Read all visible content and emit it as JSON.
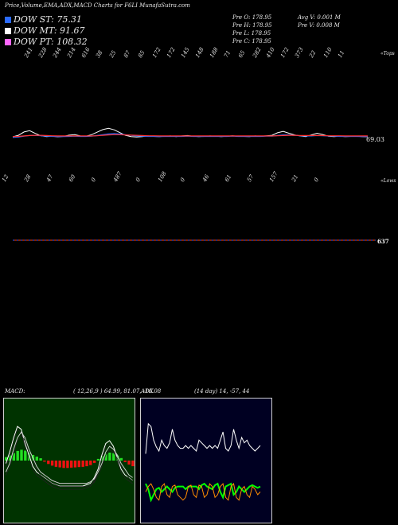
{
  "header": {
    "title": "Price,Volume,EMA,ADX,MACD Charts for F6LI MunafaSutra.com"
  },
  "dow": [
    {
      "label": "DOW ST: 75.31",
      "color": "#2b6bff"
    },
    {
      "label": "DOW MT: 91.67",
      "color": "#ffffff"
    },
    {
      "label": "DOW PT: 108.32",
      "color": "#ff66ff"
    }
  ],
  "prev": {
    "o": "Pre   O: 178.95",
    "h": "Pre   H: 178.95",
    "l": "Pre   L: 178.95",
    "c": "Pre   C: 178.95",
    "avgv": "Avg V: 0.001 M",
    "prev": "Pre   V: 0.008  M"
  },
  "top_labels": [
    "241",
    "228",
    "244",
    "214",
    "616",
    "38",
    "25",
    "87",
    "85",
    "172",
    "172",
    "145",
    "148",
    "188",
    "71",
    "65",
    "282",
    "410",
    "172",
    "373",
    "22",
    "110",
    "11"
  ],
  "low_labels": [
    "12",
    "28",
    "47",
    "60",
    "0",
    "487",
    "0",
    "108",
    "0",
    "46",
    "61",
    "57",
    "157",
    "21",
    "0"
  ],
  "edge_labels": {
    "tops": "«Tops",
    "lows": "«Lows"
  },
  "price_label": "69.03",
  "volume_label": "637",
  "macd": {
    "label": "MACD:",
    "params": "( 12,26,9 ) 64.99, 81.07, -16.08"
  },
  "adx": {
    "label": "ADX",
    "params": "(14  day) 14,  -57,  44"
  },
  "chart_data": [
    {
      "type": "line",
      "name": "price panel",
      "series": [
        {
          "color": "#ffffff",
          "values": [
            60.5,
            61.2,
            62.8,
            63.4,
            62.1,
            61.0,
            60.6,
            60.8,
            60.5,
            60.7,
            61.3,
            61.5,
            60.9,
            60.8,
            61.5,
            62.7,
            63.9,
            64.5,
            63.8,
            62.5,
            61.2,
            60.6,
            60.4,
            60.6,
            60.9,
            60.7,
            60.6,
            60.8,
            60.9,
            60.6,
            60.9,
            61.1,
            60.8,
            60.6,
            60.7,
            60.9,
            60.8,
            60.6,
            60.8,
            61.0,
            60.8,
            60.7,
            60.6,
            60.9,
            60.8,
            61.0,
            61.2,
            62.4,
            63.1,
            62.2,
            61.4,
            60.9,
            60.6,
            61.4,
            62.2,
            61.6,
            60.8,
            60.6,
            60.8,
            60.6,
            60.7,
            60.8,
            60.6,
            60.5
          ]
        },
        {
          "color": "#2b6bff",
          "values": [
            60.2,
            60.4,
            60.8,
            61.1,
            61.2,
            61.0,
            60.8,
            60.7,
            60.6,
            60.6,
            60.7,
            60.8,
            60.7,
            60.7,
            60.8,
            61.1,
            61.5,
            61.9,
            62.0,
            61.8,
            61.5,
            61.2,
            60.9,
            60.8,
            60.7,
            60.7,
            60.6,
            60.7,
            60.7,
            60.7,
            60.7,
            60.8,
            60.7,
            60.7,
            60.7,
            60.7,
            60.7,
            60.7,
            60.7,
            60.8,
            60.7,
            60.7,
            60.7,
            60.7,
            60.7,
            60.8,
            60.8,
            61.1,
            61.4,
            61.4,
            61.2,
            61.0,
            60.9,
            60.9,
            61.1,
            61.0,
            60.9,
            60.8,
            60.7,
            60.7,
            60.7,
            60.7,
            60.6,
            60.6
          ]
        },
        {
          "color": "#ff3333",
          "values": [
            60.6,
            60.7,
            60.9,
            61.1,
            61.2,
            61.2,
            61.1,
            61.0,
            60.9,
            60.9,
            60.9,
            60.9,
            60.9,
            60.9,
            60.9,
            61.0,
            61.2,
            61.4,
            61.5,
            61.5,
            61.4,
            61.3,
            61.2,
            61.1,
            61.0,
            61.0,
            60.9,
            60.9,
            60.9,
            60.9,
            60.9,
            60.9,
            60.9,
            60.9,
            60.9,
            60.9,
            60.9,
            60.9,
            60.9,
            60.9,
            60.9,
            60.9,
            60.9,
            60.9,
            60.9,
            60.9,
            60.9,
            61.0,
            61.1,
            61.2,
            61.2,
            61.1,
            61.1,
            61.1,
            61.1,
            61.1,
            61.0,
            61.0,
            61.0,
            60.9,
            60.9,
            60.9,
            60.9,
            60.9
          ]
        }
      ],
      "ylim": [
        50,
        80
      ]
    },
    {
      "type": "bar",
      "name": "macd histogram",
      "values": [
        1.2,
        1.8,
        2.6,
        3.4,
        3.8,
        3.5,
        2.8,
        2.0,
        1.4,
        0.8,
        -0.4,
        -1.2,
        -1.8,
        -2.2,
        -2.4,
        -2.6,
        -2.6,
        -2.5,
        -2.4,
        -2.3,
        -2.2,
        -2.0,
        -1.6,
        -0.8,
        0.6,
        1.6,
        2.4,
        2.8,
        2.6,
        1.8,
        0.9,
        -0.5,
        -1.4,
        -2.0
      ],
      "macd_line": [
        -1,
        3,
        8,
        12,
        11,
        6,
        2,
        -2,
        -4,
        -5,
        -6,
        -7,
        -8,
        -8.5,
        -9,
        -9,
        -9,
        -9,
        -9,
        -9,
        -9,
        -8.5,
        -8,
        -6,
        -3,
        2,
        6,
        7,
        5,
        1,
        -3,
        -5,
        -6,
        -7
      ],
      "signal_line": [
        -4,
        -1,
        4,
        8,
        10,
        8,
        4,
        1,
        -2,
        -4,
        -5,
        -6,
        -7,
        -7.5,
        -8,
        -8,
        -8,
        -8,
        -8,
        -8,
        -8,
        -8,
        -7.5,
        -6.5,
        -4,
        -1,
        3,
        5,
        4,
        2,
        -1,
        -3,
        -5,
        -6
      ],
      "ylim": [
        -14,
        14
      ]
    },
    {
      "type": "line",
      "name": "adx panel",
      "series": [
        {
          "color": "#ffffff",
          "values": [
            20,
            42,
            40,
            30,
            25,
            22,
            30,
            26,
            24,
            28,
            38,
            30,
            26,
            24,
            24,
            26,
            24,
            26,
            24,
            22,
            30,
            28,
            26,
            24,
            26,
            24,
            26,
            24,
            30,
            36,
            24,
            22,
            26,
            38,
            30,
            24,
            32,
            28,
            30,
            26,
            24,
            22,
            24,
            26
          ]
        },
        {
          "color": "#00ff00",
          "values": [
            -2,
            -6,
            -14,
            -10,
            -6,
            -5,
            -8,
            -6,
            -4,
            -6,
            -8,
            -5,
            -4,
            -4,
            -4,
            -6,
            -4,
            -4,
            -4,
            -4,
            -6,
            -3,
            -2,
            -4,
            -5,
            -6,
            -3,
            -2,
            -8,
            -12,
            -4,
            -3,
            -2,
            -10,
            -8,
            -4,
            -6,
            -8,
            -6,
            -4,
            -3,
            -4,
            -5,
            -4
          ]
        },
        {
          "color": "#ff8c00",
          "values": [
            -8,
            -4,
            -2,
            -6,
            -12,
            -14,
            -4,
            -2,
            -10,
            -12,
            -4,
            -3,
            -10,
            -12,
            -14,
            -12,
            -4,
            -3,
            -10,
            -12,
            -3,
            -4,
            -12,
            -10,
            -2,
            -4,
            -12,
            -10,
            -4,
            -2,
            -12,
            -14,
            -4,
            -2,
            -12,
            -14,
            -6,
            -4,
            -10,
            -12,
            -4,
            -6,
            -10,
            -8
          ]
        }
      ],
      "ylim": [
        -20,
        50
      ]
    }
  ]
}
